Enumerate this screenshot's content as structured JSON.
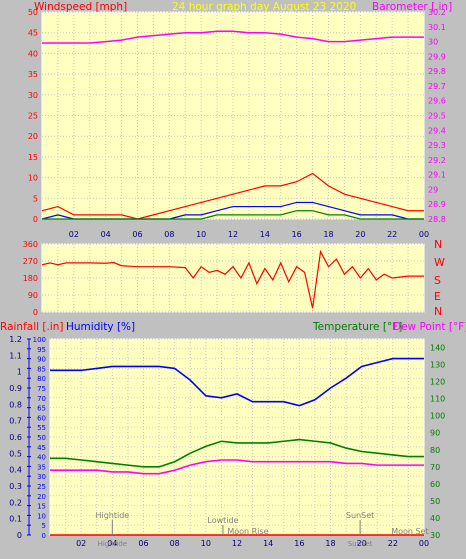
{
  "header": {
    "title": "24 hour graph day   August 23 2020",
    "left_title": "Windspeed [mph]",
    "right_title": "Barometer [.in]"
  },
  "colors": {
    "plot_bg": "#ffffc0",
    "panel_bg": "#c0c0c0",
    "wind": "#ff0000",
    "gust": "#0000ff",
    "avg_wind": "#008000",
    "barometer": "#ff00ff",
    "direction": "#ff0000",
    "temperature": "#008000",
    "dew_point": "#ff00ff",
    "humidity": "#0000ff",
    "rain": "#ff0000"
  },
  "panels": {
    "direction": {
      "labels": [
        "N",
        "W",
        "S",
        "E",
        "N"
      ]
    },
    "lower": {
      "rain_title": "Rainfall [.in]",
      "humidity_title": "Humidity [%]",
      "temp_title": "Temperature [°F]",
      "dew_title": "Dew Point [°F]"
    }
  },
  "x_ticks": [
    "02",
    "04",
    "06",
    "08",
    "10",
    "12",
    "14",
    "16",
    "18",
    "20",
    "22",
    "00"
  ],
  "events": [
    {
      "label": "Hightide",
      "hour": 4.0,
      "row": "upper"
    },
    {
      "label": "Lowtide",
      "hour": 11.1,
      "row": "middle"
    },
    {
      "label": "Moon Rise",
      "hour": 12.7,
      "row": "lower"
    },
    {
      "label": "SunSet",
      "hour": 19.9,
      "row": "upper"
    },
    {
      "label": "Moon Set",
      "hour": 23.1,
      "row": "lower"
    }
  ],
  "bottom_event_labels": [
    {
      "label": "Hightide",
      "hour": 4.0
    },
    {
      "label": "SunSet",
      "hour": 19.9
    }
  ],
  "chart_data": [
    {
      "type": "line",
      "title": "24 hour graph day   August 23 2020",
      "ylabel": "Windspeed [mph]",
      "y2label": "Barometer [.in]",
      "ylim": [
        0,
        50
      ],
      "y_ticks": [
        0,
        5,
        10,
        15,
        20,
        25,
        30,
        35,
        40,
        45,
        50
      ],
      "y2lim": [
        28.8,
        30.2
      ],
      "y2_ticks": [
        "28.8",
        "28.9",
        "29",
        "29.1",
        "29.2",
        "29.3",
        "29.4",
        "29.5",
        "29.6",
        "29.7",
        "29.8",
        "29.9",
        "30",
        "30.1",
        "30.2"
      ],
      "x_hours": [
        0,
        24
      ],
      "series": [
        {
          "axis": "y2",
          "x": [
            0,
            1,
            2,
            3,
            4,
            5,
            6,
            7,
            8,
            9,
            10,
            11,
            12,
            13,
            14,
            15,
            16,
            17,
            18,
            19,
            20,
            21,
            22,
            23,
            24
          ],
          "values": [
            29.99,
            29.99,
            29.99,
            29.99,
            30.0,
            30.01,
            30.03,
            30.04,
            30.05,
            30.06,
            30.06,
            30.07,
            30.07,
            30.06,
            30.06,
            30.05,
            30.03,
            30.02,
            30.0,
            30.0,
            30.01,
            30.02,
            30.03,
            30.03,
            30.03
          ]
        },
        {
          "axis": "y",
          "x": [
            0,
            1,
            2,
            3,
            4,
            5,
            6,
            7,
            8,
            9,
            10,
            11,
            12,
            13,
            14,
            15,
            16,
            17,
            18,
            19,
            20,
            21,
            22,
            23,
            24
          ],
          "values": [
            2,
            3,
            1,
            1,
            1,
            1,
            0,
            1,
            2,
            3,
            4,
            5,
            6,
            7,
            8,
            8,
            9,
            11,
            8,
            6,
            5,
            4,
            3,
            2,
            2
          ]
        },
        {
          "axis": "y",
          "x": [
            0,
            1,
            2,
            3,
            4,
            5,
            6,
            7,
            8,
            9,
            10,
            11,
            12,
            13,
            14,
            15,
            16,
            17,
            18,
            19,
            20,
            21,
            22,
            23,
            24
          ],
          "values": [
            0,
            1,
            0,
            0,
            0,
            0,
            0,
            0,
            0,
            1,
            1,
            2,
            3,
            3,
            3,
            3,
            4,
            4,
            3,
            2,
            1,
            1,
            1,
            0,
            0
          ]
        },
        {
          "axis": "y",
          "x": [
            0,
            1,
            2,
            3,
            4,
            5,
            6,
            7,
            8,
            9,
            10,
            11,
            12,
            13,
            14,
            15,
            16,
            17,
            18,
            19,
            20,
            21,
            22,
            23,
            24
          ],
          "values": [
            0,
            0,
            0,
            0,
            0,
            0,
            0,
            0,
            0,
            0,
            0,
            1,
            1,
            1,
            1,
            1,
            2,
            2,
            1,
            1,
            0,
            0,
            0,
            0,
            0
          ]
        }
      ]
    },
    {
      "type": "line",
      "ylabel": "",
      "ylim": [
        0,
        360
      ],
      "y_ticks": [
        0,
        90,
        180,
        270,
        360
      ],
      "x_hours": [
        0,
        24
      ],
      "series": [
        {
          "x": [
            0,
            0.5,
            1,
            1.5,
            2,
            3,
            4,
            4.5,
            5,
            6,
            7,
            8,
            9,
            9.5,
            10,
            10.5,
            11,
            11.5,
            12,
            12.5,
            13,
            13.5,
            14,
            14.5,
            15,
            15.5,
            16,
            16.5,
            17,
            17.5,
            18,
            18.5,
            19,
            19.5,
            20,
            20.5,
            21,
            21.5,
            22,
            23,
            24
          ],
          "values": [
            250,
            260,
            250,
            260,
            260,
            260,
            258,
            262,
            245,
            240,
            240,
            240,
            235,
            180,
            240,
            210,
            220,
            200,
            240,
            180,
            260,
            150,
            230,
            170,
            260,
            160,
            240,
            210,
            20,
            320,
            240,
            280,
            200,
            240,
            180,
            230,
            170,
            200,
            180,
            190,
            190
          ]
        }
      ]
    },
    {
      "type": "line",
      "ylabel": "Rainfall [.in]",
      "y2label": "Humidity [%]",
      "y3label": "Temperature [°F]",
      "y4label": "Dew Point [°F]",
      "ylim": [
        0,
        1.2
      ],
      "y_ticks": [
        "0",
        "0.1",
        "0.2",
        "0.3",
        "0.4",
        "0.5",
        "0.6",
        "0.7",
        "0.8",
        "0.9",
        "1",
        "1.1",
        "1.2"
      ],
      "y2lim": [
        0,
        100
      ],
      "y2_ticks": [
        0,
        5,
        10,
        15,
        20,
        25,
        30,
        35,
        40,
        45,
        50,
        55,
        60,
        65,
        70,
        75,
        80,
        85,
        90,
        95,
        100
      ],
      "y3lim": [
        30,
        145
      ],
      "y3_ticks": [
        30,
        40,
        50,
        60,
        70,
        80,
        90,
        100,
        110,
        120,
        130,
        140
      ],
      "x_hours": [
        0,
        24
      ],
      "series": [
        {
          "name": "Humidity [%]",
          "axis": "y2",
          "x": [
            0,
            1,
            2,
            3,
            4,
            5,
            6,
            7,
            8,
            9,
            10,
            11,
            12,
            13,
            14,
            15,
            16,
            17,
            18,
            19,
            20,
            21,
            22,
            23,
            24
          ],
          "values": [
            84,
            84,
            84,
            85,
            86,
            86,
            86,
            86,
            85,
            79,
            71,
            70,
            72,
            68,
            68,
            68,
            66,
            69,
            75,
            80,
            86,
            88,
            90,
            90,
            90
          ]
        },
        {
          "name": "Temperature [°F]",
          "axis": "y3",
          "x": [
            0,
            1,
            2,
            3,
            4,
            5,
            6,
            7,
            8,
            9,
            10,
            11,
            12,
            13,
            14,
            15,
            16,
            17,
            18,
            19,
            20,
            21,
            22,
            23,
            24
          ],
          "values": [
            75,
            75,
            74,
            73,
            72,
            71,
            70,
            70,
            73,
            78,
            82,
            85,
            84,
            84,
            84,
            85,
            86,
            85,
            84,
            81,
            79,
            78,
            77,
            76,
            76
          ]
        },
        {
          "name": "Dew Point [°F]",
          "axis": "y3",
          "x": [
            0,
            1,
            2,
            3,
            4,
            5,
            6,
            7,
            8,
            9,
            10,
            11,
            12,
            13,
            14,
            15,
            16,
            17,
            18,
            19,
            20,
            21,
            22,
            23,
            24
          ],
          "values": [
            68,
            68,
            68,
            68,
            67,
            67,
            66,
            66,
            68,
            71,
            73,
            74,
            74,
            73,
            73,
            73,
            73,
            73,
            73,
            72,
            72,
            71,
            71,
            71,
            71
          ]
        },
        {
          "name": "Rainfall [.in]",
          "axis": "y",
          "x": [
            0,
            24
          ],
          "values": [
            0,
            0
          ]
        }
      ]
    }
  ]
}
